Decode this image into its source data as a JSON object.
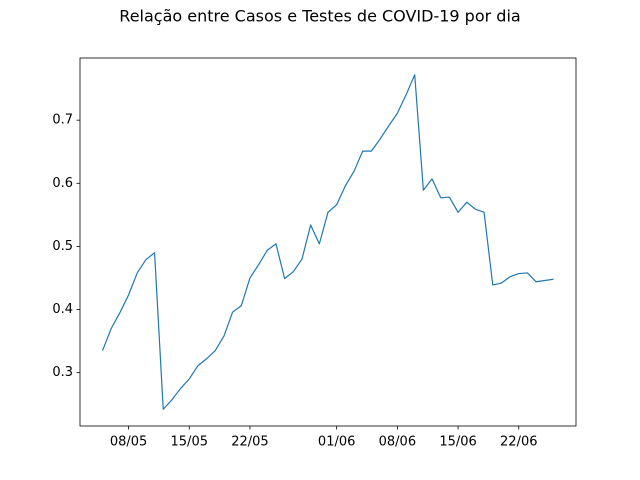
{
  "chart_data": {
    "type": "line",
    "title": "Relação entre Casos e Testes de COVID-19 por dia",
    "x": [
      "05/05",
      "06/05",
      "07/05",
      "08/05",
      "09/05",
      "10/05",
      "11/05",
      "12/05",
      "13/05",
      "14/05",
      "15/05",
      "16/05",
      "17/05",
      "18/05",
      "19/05",
      "20/05",
      "21/05",
      "22/05",
      "23/05",
      "24/05",
      "25/05",
      "26/05",
      "27/05",
      "28/05",
      "29/05",
      "30/05",
      "31/05",
      "01/06",
      "02/06",
      "03/06",
      "04/06",
      "05/06",
      "06/06",
      "07/06",
      "08/06",
      "09/06",
      "10/06",
      "11/06",
      "12/06",
      "13/06",
      "14/06",
      "15/06",
      "16/06",
      "17/06",
      "18/06",
      "19/06",
      "20/06",
      "21/06",
      "22/06",
      "23/06",
      "24/06",
      "25/06",
      "26/06"
    ],
    "values": [
      0.335,
      0.37,
      0.395,
      0.423,
      0.458,
      0.479,
      0.49,
      0.242,
      0.257,
      0.275,
      0.29,
      0.311,
      0.322,
      0.335,
      0.358,
      0.396,
      0.406,
      0.45,
      0.471,
      0.494,
      0.504,
      0.449,
      0.46,
      0.48,
      0.534,
      0.504,
      0.554,
      0.566,
      0.596,
      0.619,
      0.651,
      0.651,
      0.67,
      0.691,
      0.711,
      0.74,
      0.772,
      0.589,
      0.607,
      0.577,
      0.578,
      0.554,
      0.57,
      0.559,
      0.554,
      0.439,
      0.442,
      0.452,
      0.457,
      0.458,
      0.444,
      0.446,
      0.448
    ],
    "color": "#1f77b4",
    "xticks": [
      "08/05",
      "15/05",
      "22/05",
      "01/06",
      "08/06",
      "15/06",
      "22/06"
    ],
    "ylim": [
      0.2155,
      0.7985
    ],
    "yticks": [
      0.3,
      0.4,
      0.5,
      0.6,
      0.7
    ]
  }
}
